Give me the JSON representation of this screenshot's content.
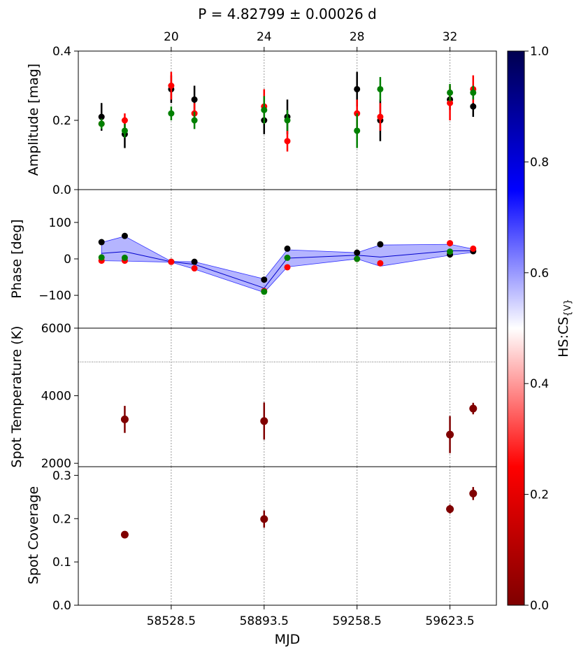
{
  "chart_data": {
    "type": "scatter",
    "title": "P = 4.82799 ± 0.00026 d",
    "xlabel": "MJD",
    "x_ticks": [
      "58528.5",
      "58893.5",
      "59258.5",
      "59623.5"
    ],
    "top_axis_ticks": [
      "20",
      "24",
      "28",
      "32"
    ],
    "colorbar": {
      "label": "HS:CS",
      "label_subscript": "{V}",
      "ticks": [
        "0.0",
        "0.2",
        "0.4",
        "0.6",
        "0.8",
        "1.0"
      ],
      "range": [
        0,
        1
      ],
      "colors": [
        "#7f0000",
        "#ff0000",
        "#ffffff",
        "#0000ff",
        "#00004f"
      ]
    },
    "top_x_range": [
      16,
      34
    ],
    "panels": [
      {
        "ylabel": "Amplitude [mag]",
        "ylim": [
          0,
          0.4
        ],
        "y_ticks": [
          "0.0",
          "0.2",
          "0.4"
        ],
        "series": [
          {
            "name": "black",
            "color": "#000000",
            "x": [
              17,
              18,
              20,
              21,
              24,
              25,
              28,
              29,
              32,
              33
            ],
            "y": [
              0.21,
              0.16,
              0.29,
              0.26,
              0.2,
              0.21,
              0.29,
              0.2,
              0.26,
              0.24
            ],
            "err": [
              0.04,
              0.04,
              0.04,
              0.04,
              0.04,
              0.05,
              0.05,
              0.06,
              0.03,
              0.03
            ]
          },
          {
            "name": "red",
            "color": "#ff0000",
            "x": [
              17,
              18,
              20,
              21,
              24,
              25,
              28,
              29,
              32,
              33
            ],
            "y": [
              0.19,
              0.2,
              0.3,
              0.22,
              0.24,
              0.14,
              0.22,
              0.21,
              0.25,
              0.29
            ],
            "err": [
              0.01,
              0.02,
              0.04,
              0.03,
              0.05,
              0.03,
              0.04,
              0.04,
              0.05,
              0.04
            ]
          },
          {
            "name": "green",
            "color": "#008000",
            "x": [
              17,
              18,
              20,
              21,
              24,
              25,
              28,
              29,
              32,
              33
            ],
            "y": [
              0.19,
              0.17,
              0.22,
              0.2,
              0.23,
              0.2,
              0.17,
              0.29,
              0.28,
              0.28
            ],
            "err": [
              0.015,
              0.02,
              0.02,
              0.025,
              0.04,
              0.03,
              0.05,
              0.035,
              0.025,
              0.02
            ]
          }
        ]
      },
      {
        "ylabel": "Phase [deg]",
        "ylim": [
          -190,
          190
        ],
        "y_ticks": [
          "−100",
          "0",
          "100"
        ],
        "y_tick_values": [
          -100,
          0,
          100
        ],
        "band": {
          "x": [
            17,
            18,
            20,
            21,
            24,
            25,
            28,
            29,
            32,
            33
          ],
          "mean": [
            15,
            20,
            -8,
            -15,
            -80,
            2,
            10,
            5,
            22,
            22
          ],
          "upper": [
            45,
            62,
            -7,
            -8,
            -55,
            25,
            17,
            38,
            40,
            27
          ],
          "lower": [
            -5,
            -6,
            -9,
            -28,
            -92,
            -22,
            0,
            -20,
            10,
            18
          ]
        },
        "series": [
          {
            "name": "black",
            "color": "#000000",
            "x": [
              17,
              18,
              20,
              21,
              24,
              25,
              28,
              29,
              32,
              33
            ],
            "y": [
              46,
              63,
              -8,
              -8,
              -57,
              28,
              17,
              40,
              12,
              21
            ],
            "err": [
              0,
              0,
              0,
              0,
              0,
              0,
              0,
              0,
              0,
              0
            ]
          },
          {
            "name": "red",
            "color": "#ff0000",
            "x": [
              17,
              18,
              20,
              21,
              24,
              25,
              28,
              29,
              32,
              33
            ],
            "y": [
              -5,
              -5,
              -8,
              -26,
              -88,
              -23,
              0,
              -12,
              43,
              28
            ],
            "err": [
              0,
              0,
              0,
              0,
              0,
              0,
              0,
              0,
              0,
              0
            ]
          },
          {
            "name": "green",
            "color": "#008000",
            "x": [
              17,
              18,
              24,
              25,
              28,
              32
            ],
            "y": [
              4,
              3,
              -90,
              3,
              0,
              20
            ],
            "err": [
              0,
              0,
              0,
              0,
              0,
              0
            ]
          }
        ]
      },
      {
        "ylabel": "Spot Temperature (K)",
        "ylim": [
          1900,
          6000
        ],
        "y_ticks": [
          "2000",
          "4000",
          "6000"
        ],
        "y_tick_values": [
          2000,
          4000,
          6000
        ],
        "hline": 5000,
        "series": [
          {
            "name": "spot",
            "color": "#800000",
            "x": [
              18,
              24,
              32,
              33
            ],
            "y": [
              3300,
              3250,
              2850,
              3620
            ],
            "err": [
              400,
              550,
              550,
              170
            ]
          }
        ]
      },
      {
        "ylabel": "Spot Coverage",
        "ylim": [
          0,
          0.32
        ],
        "y_ticks": [
          "0.0",
          "0.1",
          "0.2",
          "0.3"
        ],
        "y_tick_values": [
          0,
          0.1,
          0.2,
          0.3
        ],
        "series": [
          {
            "name": "spot",
            "color": "#800000",
            "x": [
              18,
              24,
              32,
              33
            ],
            "y": [
              0.163,
              0.199,
              0.222,
              0.258
            ],
            "err": [
              0,
              0.02,
              0.01,
              0.015
            ]
          }
        ]
      }
    ]
  }
}
